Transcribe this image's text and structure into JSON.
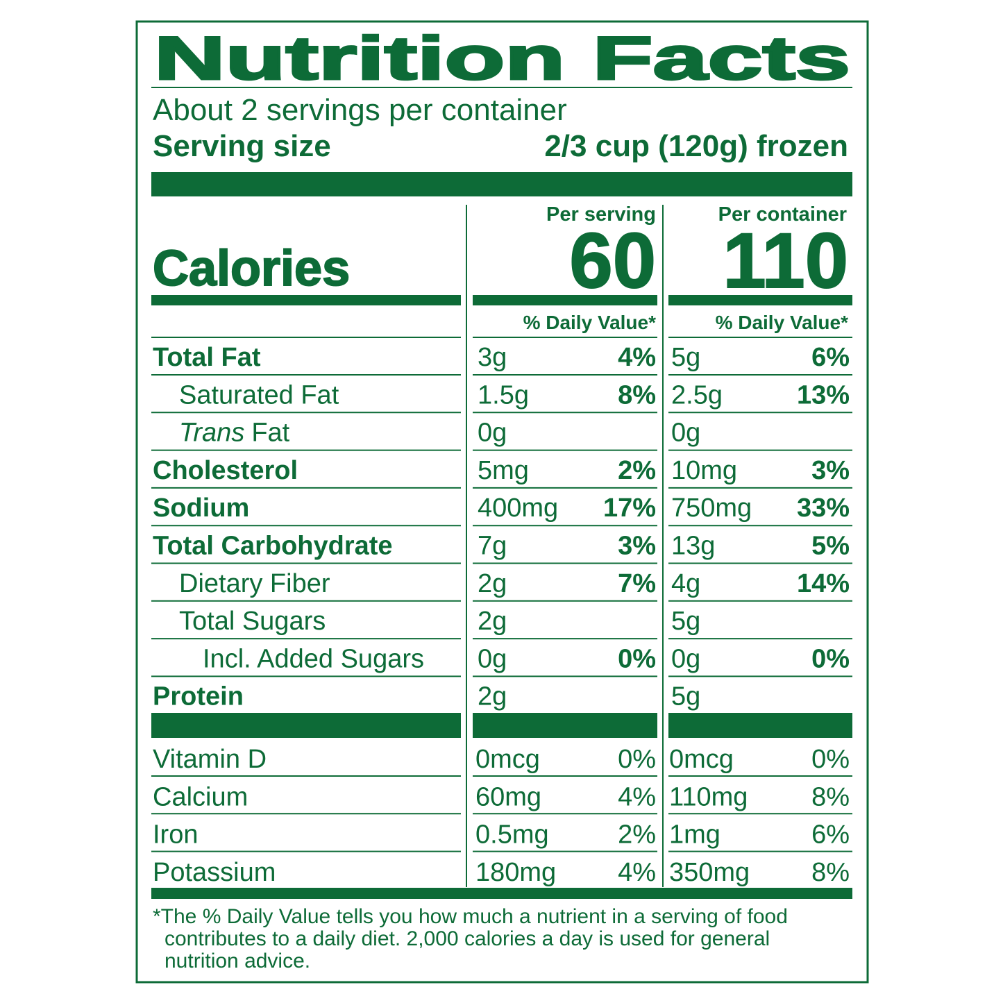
{
  "title": "Nutrition Facts",
  "servings_per_container": "About 2 servings per container",
  "serving_size_label": "Serving size",
  "serving_size": "2/3 cup (120g) frozen",
  "columns": [
    "Per serving",
    "Per container"
  ],
  "calories_label": "Calories",
  "calories": [
    "60",
    "110"
  ],
  "daily_value_headers": [
    "% Daily Value*",
    "% Daily Value*"
  ],
  "nutrients": [
    {
      "name": "Total Fat",
      "per_serving": {
        "amount": "3g",
        "dv": "4%"
      },
      "per_container": {
        "amount": "5g",
        "dv": "6%"
      }
    },
    {
      "name": "Saturated Fat",
      "per_serving": {
        "amount": "1.5g",
        "dv": "8%"
      },
      "per_container": {
        "amount": "2.5g",
        "dv": "13%"
      }
    },
    {
      "name_italic": "Trans",
      "name": "Fat",
      "per_serving": {
        "amount": "0g"
      },
      "per_container": {
        "amount": "0g"
      }
    },
    {
      "name": "Cholesterol",
      "per_serving": {
        "amount": "5mg",
        "dv": "2%"
      },
      "per_container": {
        "amount": "10mg",
        "dv": "3%"
      }
    },
    {
      "name": "Sodium",
      "per_serving": {
        "amount": "400mg",
        "dv": "17%"
      },
      "per_container": {
        "amount": "750mg",
        "dv": "33%"
      }
    },
    {
      "name": "Total Carbohydrate",
      "per_serving": {
        "amount": "7g",
        "dv": "3%"
      },
      "per_container": {
        "amount": "13g",
        "dv": "5%"
      }
    },
    {
      "name": "Dietary Fiber",
      "per_serving": {
        "amount": "2g",
        "dv": "7%"
      },
      "per_container": {
        "amount": "4g",
        "dv": "14%"
      }
    },
    {
      "name": "Total Sugars",
      "per_serving": {
        "amount": "2g"
      },
      "per_container": {
        "amount": "5g"
      }
    },
    {
      "name": "Incl. Added Sugars",
      "per_serving": {
        "amount": "0g",
        "dv": "0%"
      },
      "per_container": {
        "amount": "0g",
        "dv": "0%"
      }
    },
    {
      "name": "Protein",
      "per_serving": {
        "amount": "2g"
      },
      "per_container": {
        "amount": "5g"
      }
    }
  ],
  "vitamins": [
    {
      "name": "Vitamin D",
      "per_serving": {
        "amount": "0mcg",
        "dv": "0%"
      },
      "per_container": {
        "amount": "0mcg",
        "dv": "0%"
      }
    },
    {
      "name": "Calcium",
      "per_serving": {
        "amount": "60mg",
        "dv": "4%"
      },
      "per_container": {
        "amount": "110mg",
        "dv": "8%"
      }
    },
    {
      "name": "Iron",
      "per_serving": {
        "amount": "0.5mg",
        "dv": "2%"
      },
      "per_container": {
        "amount": "1mg",
        "dv": "6%"
      }
    },
    {
      "name": "Potassium",
      "per_serving": {
        "amount": "180mg",
        "dv": "4%"
      },
      "per_container": {
        "amount": "350mg",
        "dv": "8%"
      }
    }
  ],
  "footnote": [
    "*The % Daily Value tells you how much a nutrient in a serving of food",
    "contributes to a daily diet. 2,000 calories a day is used for general",
    "nutrition advice."
  ]
}
